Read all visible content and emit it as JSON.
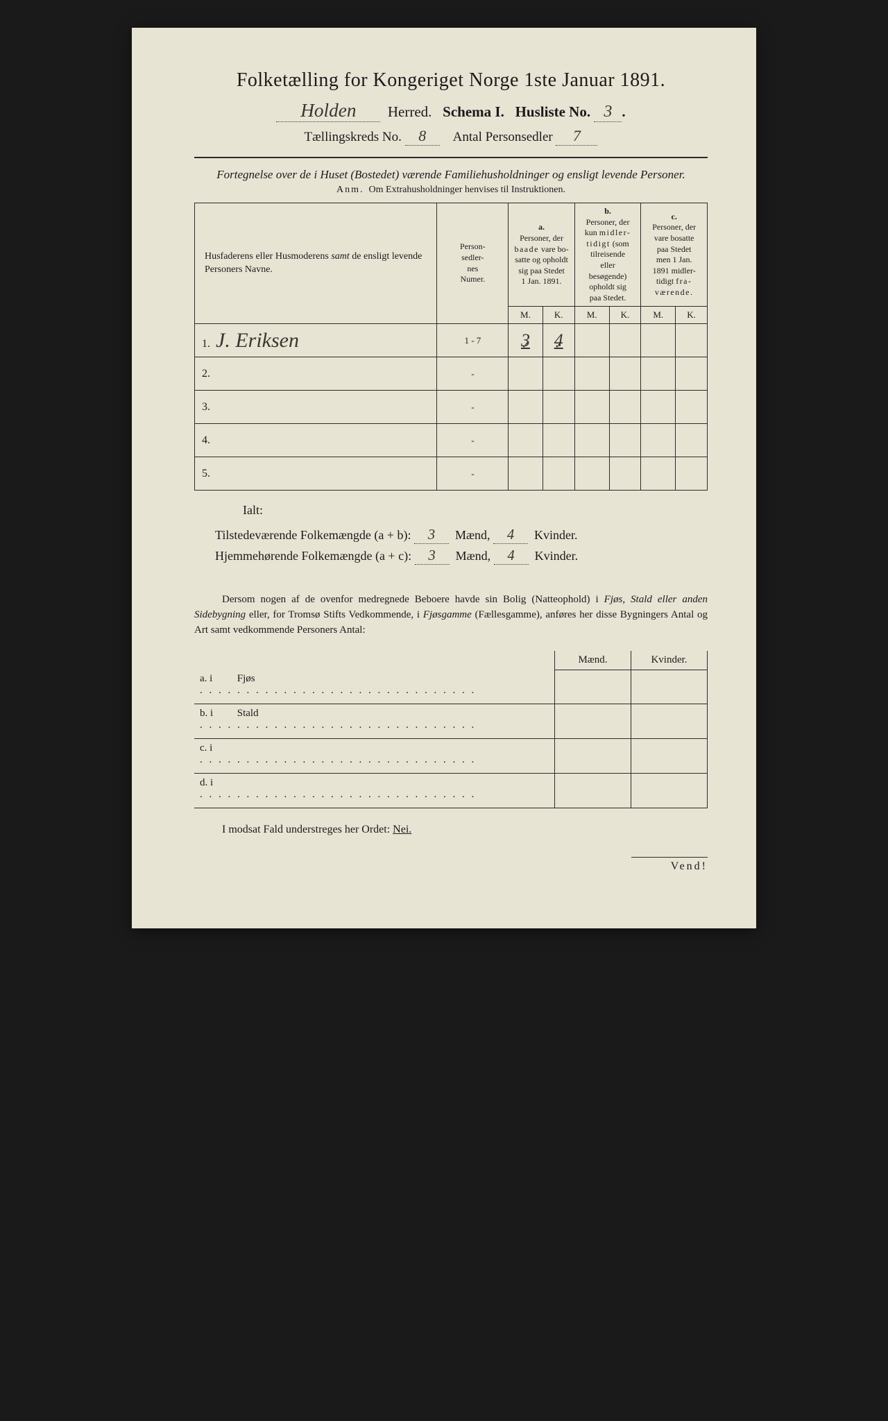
{
  "background_color": "#e8e4d4",
  "text_color": "#1a1a1a",
  "handwriting_color": "#3a3530",
  "title": {
    "main": "Folketælling for Kongeriget Norge 1ste Januar 1891."
  },
  "header": {
    "herred_value": "Holden",
    "herred_label": "Herred.",
    "schema_label": "Schema I.",
    "husliste_label": "Husliste No.",
    "husliste_value": "3",
    "kreds_label": "Tællingskreds No.",
    "kreds_value": "8",
    "antal_label": "Antal Personsedler",
    "antal_value": "7"
  },
  "subtitle": "Fortegnelse over de i Huset (Bostedet) værende Familiehusholdninger og ensligt levende Personer.",
  "anm_prefix": "Anm.",
  "anm_text": "Om Extrahusholdninger henvises til Instruktionen.",
  "columns": {
    "name": "Husfaderens eller Husmoderens samt de ensligt levende Personers Navne.",
    "num": "Person-sedler-nes Numer.",
    "a_label": "a.",
    "a_text": "Personer, der baade vare bosatte og opholdt sig paa Stedet 1 Jan. 1891.",
    "b_label": "b.",
    "b_text": "Personer, der kun midlertidigt (som tilreisende eller besøgende) opholdt sig paa Stedet.",
    "c_label": "c.",
    "c_text": "Personer, der vare bosatte paa Stedet men 1 Jan. 1891 midlertidigt fraværende.",
    "m": "M.",
    "k": "K."
  },
  "rows": [
    {
      "n": "1.",
      "name": "J. Eriksen",
      "num": "1 - 7",
      "am": "3",
      "ak": "4",
      "bm": "",
      "bk": "",
      "cm": "",
      "ck": ""
    },
    {
      "n": "2.",
      "name": "",
      "num": "-",
      "am": "",
      "ak": "",
      "bm": "",
      "bk": "",
      "cm": "",
      "ck": ""
    },
    {
      "n": "3.",
      "name": "",
      "num": "-",
      "am": "",
      "ak": "",
      "bm": "",
      "bk": "",
      "cm": "",
      "ck": ""
    },
    {
      "n": "4.",
      "name": "",
      "num": "-",
      "am": "",
      "ak": "",
      "bm": "",
      "bk": "",
      "cm": "",
      "ck": ""
    },
    {
      "n": "5.",
      "name": "",
      "num": "-",
      "am": "",
      "ak": "",
      "bm": "",
      "bk": "",
      "cm": "",
      "ck": ""
    }
  ],
  "ialt": "Ialt:",
  "totals": {
    "line1_label": "Tilstedeværende Folkemængde (a + b):",
    "line1_m": "3",
    "line1_k": "4",
    "line2_label": "Hjemmehørende Folkemængde (a + c):",
    "line2_m": "3",
    "line2_k": "4",
    "maend": "Mænd,",
    "kvinder": "Kvinder."
  },
  "para": "Dersom nogen af de ovenfor medregnede Beboere havde sin Bolig (Natteophold) i Fjøs, Stald eller anden Sidebygning eller, for Tromsø Stifts Vedkommende, i Fjøsgamme (Fællesgamme), anføres her disse Bygningers Antal og Art samt vedkommende Personers Antal:",
  "sub_headers": {
    "maend": "Mænd.",
    "kvinder": "Kvinder."
  },
  "sub_rows": [
    {
      "letter": "a.  i",
      "label": "Fjøs"
    },
    {
      "letter": "b.  i",
      "label": "Stald"
    },
    {
      "letter": "c.  i",
      "label": ""
    },
    {
      "letter": "d.  i",
      "label": ""
    }
  ],
  "footer": {
    "text": "I modsat Fald understreges her Ordet:",
    "nei": "Nei."
  },
  "vend": "Vend!"
}
